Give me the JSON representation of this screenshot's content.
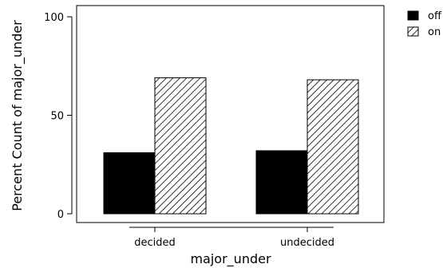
{
  "chart_data": {
    "type": "bar",
    "title": "",
    "xlabel": "major_under",
    "ylabel": "Percent Count of major_under",
    "categories": [
      "decided",
      "undecided"
    ],
    "series": [
      {
        "name": "off",
        "values": [
          31,
          32
        ],
        "fill": "solid",
        "color": "#000000"
      },
      {
        "name": "on",
        "values": [
          69,
          68
        ],
        "fill": "hatched",
        "color": "#000000"
      }
    ],
    "ylim": [
      0,
      100
    ],
    "yticks": [
      0,
      50,
      100
    ],
    "grid": false,
    "legend_position": "top-right outside"
  }
}
